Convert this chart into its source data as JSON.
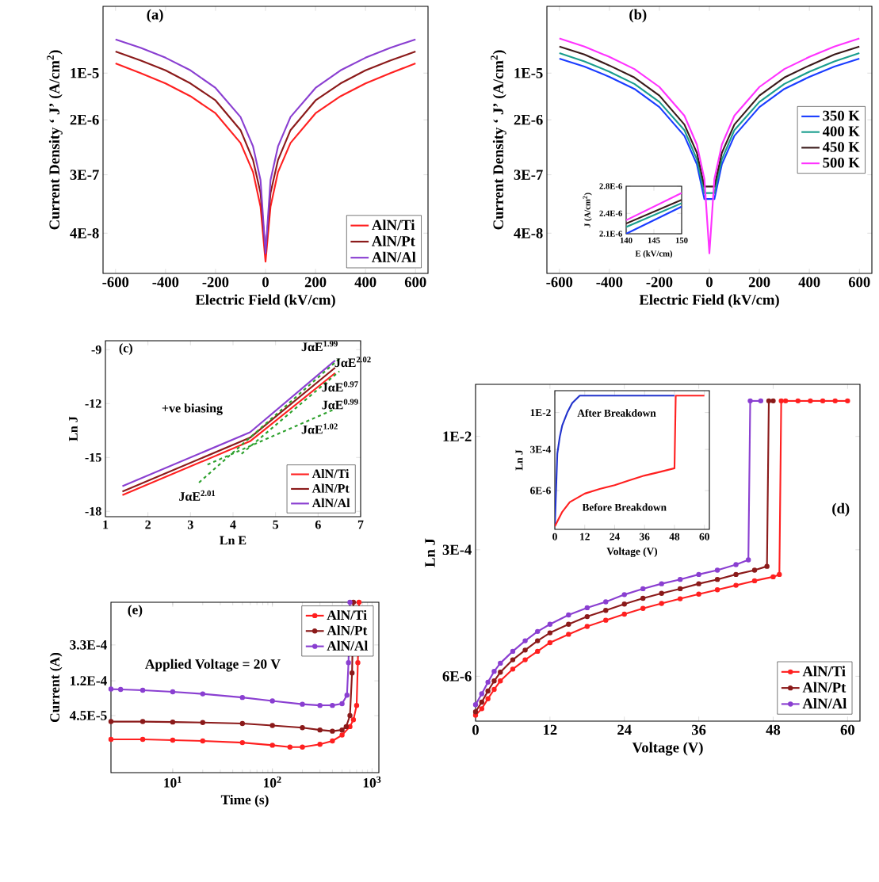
{
  "chart_data": [
    {
      "type": "line",
      "title": "(a)",
      "xlabel": "Electric Field (kV/cm)",
      "ylabel": "Current Density ‘ J’ (A/cm$^{2}$)",
      "log": "y",
      "legend": "bottom right",
      "xlim": [
        -650,
        650
      ],
      "ylim": [
        1e-08,
        0.0001
      ],
      "xticks": [
        -600,
        -400,
        -200,
        0,
        200,
        400,
        600
      ],
      "yticks": [
        {
          "value": 4e-08,
          "label": "4E-8"
        },
        {
          "value": 3e-07,
          "label": "3E-7"
        },
        {
          "value": 2e-06,
          "label": "2E-6"
        },
        {
          "value": 1e-05,
          "label": "1E-5"
        }
      ],
      "x": [
        -600,
        -500,
        -400,
        -300,
        -200,
        -100,
        -50,
        -20,
        0,
        20,
        50,
        100,
        200,
        300,
        400,
        500,
        600
      ],
      "series": [
        {
          "name": "AlN/Ti",
          "color": "#ff2020",
          "values": [
            1.4e-05,
            1e-05,
            7e-06,
            4.5e-06,
            2.5e-06,
            9e-07,
            3.3e-07,
            1e-07,
            1.5e-08,
            1e-07,
            3.3e-07,
            9e-07,
            2.5e-06,
            4.5e-06,
            7e-06,
            1e-05,
            1.4e-05
          ]
        },
        {
          "name": "AlN/Pt",
          "color": "#8b1a1a",
          "values": [
            2.1e-05,
            1.55e-05,
            1.1e-05,
            7e-06,
            3.9e-06,
            1.4e-06,
            5e-07,
            1.6e-07,
            2e-08,
            1.6e-07,
            5e-07,
            1.4e-06,
            3.9e-06,
            7e-06,
            1.1e-05,
            1.55e-05,
            2.1e-05
          ]
        },
        {
          "name": "AlN/Al",
          "color": "#8a3fd1",
          "values": [
            3.2e-05,
            2.4e-05,
            1.7e-05,
            1.1e-05,
            6e-06,
            2.2e-06,
            8e-07,
            2.5e-07,
            2e-08,
            2.5e-07,
            8e-07,
            2.2e-06,
            6e-06,
            1.1e-05,
            1.7e-05,
            2.4e-05,
            3.2e-05
          ]
        }
      ]
    },
    {
      "type": "line",
      "title": "(b)",
      "xlabel": "Electric Field (kV/cm)",
      "ylabel": "Current Density ‘ J’ (A/cm$^{2}$)",
      "log": "y",
      "legend": "right",
      "xlim": [
        -650,
        650
      ],
      "ylim": [
        1e-08,
        0.0001
      ],
      "xticks": [
        -600,
        -400,
        -200,
        0,
        200,
        400,
        600
      ],
      "yticks": [
        {
          "value": 4e-08,
          "label": "4E-8"
        },
        {
          "value": 3e-07,
          "label": "3E-7"
        },
        {
          "value": 2e-06,
          "label": "2E-6"
        },
        {
          "value": 1e-05,
          "label": "1E-5"
        }
      ],
      "x": [
        -600,
        -500,
        -400,
        -300,
        -200,
        -100,
        -50,
        -20,
        0,
        20,
        50,
        100,
        200,
        300,
        400,
        500,
        600
      ],
      "series": [
        {
          "name": "350 K",
          "color": "#1a3cff",
          "values": [
            1.65e-05,
            1.25e-05,
            8.8e-06,
            5.8e-06,
            3.1e-06,
            1.15e-06,
            4.3e-07,
            1.3e-07,
            null,
            1.3e-07,
            4.3e-07,
            1.15e-06,
            3.1e-06,
            5.8e-06,
            8.8e-06,
            1.25e-05,
            1.65e-05
          ]
        },
        {
          "name": "400 K",
          "color": "#1a9e8e",
          "values": [
            2e-05,
            1.5e-05,
            1.05e-05,
            6.9e-06,
            3.7e-06,
            1.4e-06,
            5.1e-07,
            1.6e-07,
            null,
            1.6e-07,
            5.1e-07,
            1.4e-06,
            3.7e-06,
            6.9e-06,
            1.05e-05,
            1.5e-05,
            2e-05
          ]
        },
        {
          "name": "450 K",
          "color": "#3a1a1a",
          "values": [
            2.5e-05,
            1.9e-05,
            1.3e-05,
            8.6e-06,
            4.6e-06,
            1.7e-06,
            6.4e-07,
            2e-07,
            null,
            2e-07,
            6.4e-07,
            1.7e-06,
            4.6e-06,
            8.6e-06,
            1.3e-05,
            1.9e-05,
            2.5e-05
          ]
        },
        {
          "name": "500 K",
          "color": "#ff33ff",
          "values": [
            3.3e-05,
            2.5e-05,
            1.75e-05,
            1.15e-05,
            6.2e-06,
            2.3e-06,
            8.5e-07,
            2.6e-07,
            2e-08,
            2.6e-07,
            8.5e-07,
            2.3e-06,
            6.2e-06,
            1.15e-05,
            1.75e-05,
            2.5e-05,
            3.3e-05
          ]
        }
      ]
    },
    {
      "type": "line",
      "xlabel": "E (kV/cm)",
      "ylabel": "J (A/cm$^{2}$)",
      "xlim": [
        140,
        150
      ],
      "ylim": [
        2.1e-06,
        2.8e-06
      ],
      "xticks": [
        140,
        145,
        150
      ],
      "yticks": [
        {
          "value": 2.1e-06,
          "label": "2.1E-6"
        },
        {
          "value": 2.4e-06,
          "label": "2.4E-6"
        },
        {
          "value": 2.8e-06,
          "label": "2.8E-6"
        }
      ],
      "x": [
        140,
        150
      ],
      "series": [
        {
          "color": "#1a3cff",
          "values": [
            2.1e-06,
            2.5e-06
          ]
        },
        {
          "color": "#1a9e8e",
          "values": [
            2.2e-06,
            2.55e-06
          ]
        },
        {
          "color": "#3a1a1a",
          "values": [
            2.25e-06,
            2.6e-06
          ]
        },
        {
          "color": "#ff33ff",
          "values": [
            2.3e-06,
            2.7e-06
          ]
        }
      ]
    },
    {
      "type": "line",
      "title": "(c)",
      "xlabel": "Ln E",
      "ylabel": "Ln J",
      "legend": "bottom right",
      "xlim": [
        1,
        7
      ],
      "ylim": [
        -18.3,
        -8.5
      ],
      "xticks": [
        1,
        2,
        3,
        4,
        5,
        6,
        7
      ],
      "yticks": [
        -18,
        -15,
        -12,
        -9
      ],
      "annotations": [
        "+ve biasing",
        "JαE$^{1.99}$",
        "JαE$^{2.02}$",
        "JαE$^{0.97}$",
        "JαE$^{0.99}$",
        "JαE$^{1.02}$",
        "JαE$^{2.01}$"
      ],
      "series": [
        {
          "name": "AlN/Ti",
          "color": "#ff2020",
          "x": [
            1.4,
            4.4,
            6.4
          ],
          "values": [
            -17.1,
            -14.1,
            -10.3
          ]
        },
        {
          "name": "AlN/Pt",
          "color": "#8b1a1a",
          "x": [
            1.4,
            4.4,
            6.4
          ],
          "values": [
            -16.9,
            -13.9,
            -10.0
          ]
        },
        {
          "name": "AlN/Al",
          "color": "#8a3fd1",
          "x": [
            1.4,
            4.4,
            6.4
          ],
          "values": [
            -16.6,
            -13.6,
            -9.6
          ]
        },
        {
          "color": "#2ca02c",
          "line_style": "dashed",
          "x": [
            3.2,
            6.5
          ],
          "values": [
            -16.4,
            -9.5
          ]
        },
        {
          "color": "#2ca02c",
          "line_style": "dashed",
          "x": [
            3.4,
            6.4
          ],
          "values": [
            -15.4,
            -12.3
          ]
        },
        {
          "color": "#2ca02c",
          "line_style": "dashed",
          "x": [
            4.2,
            6.5
          ],
          "values": [
            -14.8,
            -10.2
          ]
        }
      ]
    },
    {
      "type": "line",
      "title": "(d)",
      "xlabel": "Voltage (V)",
      "ylabel": "Ln J",
      "log": "y",
      "legend": "bottom right",
      "marker": "circle",
      "xlim": [
        0,
        62
      ],
      "ylim": [
        1.5e-06,
        0.05
      ],
      "xticks": [
        0,
        12,
        24,
        36,
        48,
        60
      ],
      "yticks": [
        {
          "value": 6e-06,
          "label": "6E-6"
        },
        {
          "value": 0.0003,
          "label": "3E-4"
        },
        {
          "value": 0.01,
          "label": "1E-2"
        }
      ],
      "series": [
        {
          "name": "AlN/Ti",
          "color": "#ff2020",
          "x": [
            0,
            1,
            2,
            3,
            4,
            6,
            8,
            10,
            12,
            15,
            18,
            21,
            24,
            27,
            30,
            33,
            36,
            39,
            42,
            45,
            48,
            49,
            49.3,
            50,
            52,
            54,
            56,
            58,
            60
          ],
          "values": [
            1.8e-06,
            2.2e-06,
            3e-06,
            4e-06,
            5.2e-06,
            7.5e-06,
            1e-05,
            1.3e-05,
            1.7e-05,
            2.2e-05,
            2.8e-05,
            3.4e-05,
            4.1e-05,
            4.9e-05,
            5.7e-05,
            6.6e-05,
            7.6e-05,
            8.7e-05,
            0.0001,
            0.000115,
            0.00013,
            0.00014,
            0.03,
            0.03,
            0.03,
            0.03,
            0.03,
            0.03,
            0.03
          ]
        },
        {
          "name": "AlN/Pt",
          "color": "#8b1a1a",
          "x": [
            0,
            1,
            2,
            3,
            4,
            6,
            8,
            10,
            12,
            15,
            18,
            21,
            24,
            27,
            30,
            33,
            36,
            39,
            42,
            45,
            47,
            47.3,
            48
          ],
          "values": [
            2e-06,
            2.7e-06,
            3.8e-06,
            5.2e-06,
            6.8e-06,
            1e-05,
            1.35e-05,
            1.8e-05,
            2.3e-05,
            3e-05,
            3.8e-05,
            4.6e-05,
            5.6e-05,
            6.7e-05,
            7.8e-05,
            9e-05,
            0.000105,
            0.00012,
            0.00014,
            0.00016,
            0.00018,
            0.03,
            0.03
          ]
        },
        {
          "name": "AlN/Al",
          "color": "#8a3fd1",
          "x": [
            0,
            1,
            2,
            3,
            4,
            6,
            8,
            10,
            12,
            15,
            18,
            21,
            24,
            27,
            30,
            33,
            36,
            39,
            42,
            44,
            44.3,
            46
          ],
          "values": [
            2.5e-06,
            3.5e-06,
            5e-06,
            7e-06,
            9e-06,
            1.3e-05,
            1.8e-05,
            2.4e-05,
            3e-05,
            4e-05,
            5e-05,
            6e-05,
            7.5e-05,
            9e-05,
            0.000105,
            0.00012,
            0.00014,
            0.00016,
            0.00019,
            0.00022,
            0.03,
            0.03
          ]
        }
      ]
    },
    {
      "type": "line",
      "xlabel": "Voltage (V)",
      "ylabel": "Ln J",
      "log": "y",
      "xlim": [
        0,
        62
      ],
      "ylim": [
        1.5e-07,
        0.08
      ],
      "xticks": [
        0,
        12,
        24,
        36,
        48,
        60
      ],
      "yticks": [
        {
          "value": 6e-06,
          "label": "6E-6"
        },
        {
          "value": 0.0003,
          "label": "3E-4"
        },
        {
          "value": 0.01,
          "label": "1E-2"
        }
      ],
      "annotations": [
        "After Breakdown",
        "Before Breakdown"
      ],
      "series": [
        {
          "color": "#2233cc",
          "x": [
            0,
            1,
            2,
            3,
            5,
            7,
            10,
            12,
            20,
            30,
            40,
            48
          ],
          "values": [
            2e-07,
            0.0002,
            0.001,
            0.003,
            0.01,
            0.025,
            0.05,
            0.05,
            0.05,
            0.05,
            0.05,
            0.05
          ]
        },
        {
          "color": "#ff2020",
          "x": [
            0,
            3,
            6,
            12,
            18,
            24,
            30,
            36,
            42,
            48,
            48.5,
            50,
            55,
            60
          ],
          "values": [
            2e-07,
            8e-07,
            2e-06,
            4.5e-06,
            7e-06,
            1e-05,
            1.6e-05,
            2.5e-05,
            3.5e-05,
            5e-05,
            0.05,
            0.05,
            0.05,
            0.05
          ]
        }
      ]
    },
    {
      "type": "line",
      "title": "(e)",
      "xlabel": "Time (s)",
      "ylabel": "Current (A)",
      "log": "xy",
      "legend": "top right",
      "marker": "circle",
      "xlim": [
        2.4,
        1170
      ],
      "ylim": [
        9e-06,
        0.0011
      ],
      "xticks": [
        {
          "value": 10,
          "label": "10$^{1}$"
        },
        {
          "value": 100,
          "label": "10$^{2}$"
        },
        {
          "value": 1000,
          "label": "10$^{3}$"
        }
      ],
      "yticks": [
        {
          "value": 4.5e-05,
          "label": "4.5E-5"
        },
        {
          "value": 0.00012,
          "label": "1.2E-4"
        },
        {
          "value": 0.00033,
          "label": "3.3E-4"
        }
      ],
      "annotations": [
        "Applied Voltage = 20 V"
      ],
      "series": [
        {
          "name": "AlN/Ti",
          "color": "#ff2020",
          "x": [
            2.4,
            5,
            10,
            20,
            50,
            100,
            150,
            200,
            300,
            400,
            500,
            600,
            650,
            700,
            720,
            740
          ],
          "values": [
            2.3e-05,
            2.3e-05,
            2.25e-05,
            2.2e-05,
            2.1e-05,
            1.95e-05,
            1.85e-05,
            1.85e-05,
            2e-05,
            2.2e-05,
            2.6e-05,
            3.3e-05,
            4e-05,
            6e-05,
            0.0002,
            0.0011
          ]
        },
        {
          "name": "AlN/Pt",
          "color": "#8b1a1a",
          "x": [
            2.4,
            5,
            10,
            20,
            50,
            100,
            200,
            300,
            400,
            500,
            550,
            600,
            630,
            650
          ],
          "values": [
            3.8e-05,
            3.8e-05,
            3.75e-05,
            3.7e-05,
            3.6e-05,
            3.4e-05,
            3.2e-05,
            3e-05,
            2.9e-05,
            3e-05,
            3.3e-05,
            4.5e-05,
            0.00015,
            0.0011
          ]
        },
        {
          "name": "AlN/Al",
          "color": "#8a3fd1",
          "x": [
            2.4,
            3,
            5,
            10,
            20,
            50,
            100,
            200,
            300,
            400,
            500,
            560,
            580,
            600
          ],
          "values": [
            9.5e-05,
            9.4e-05,
            9.2e-05,
            8.8e-05,
            8.3e-05,
            7.5e-05,
            6.8e-05,
            6.2e-05,
            6e-05,
            6e-05,
            6.3e-05,
            8e-05,
            0.0002,
            0.0011
          ]
        }
      ]
    }
  ]
}
